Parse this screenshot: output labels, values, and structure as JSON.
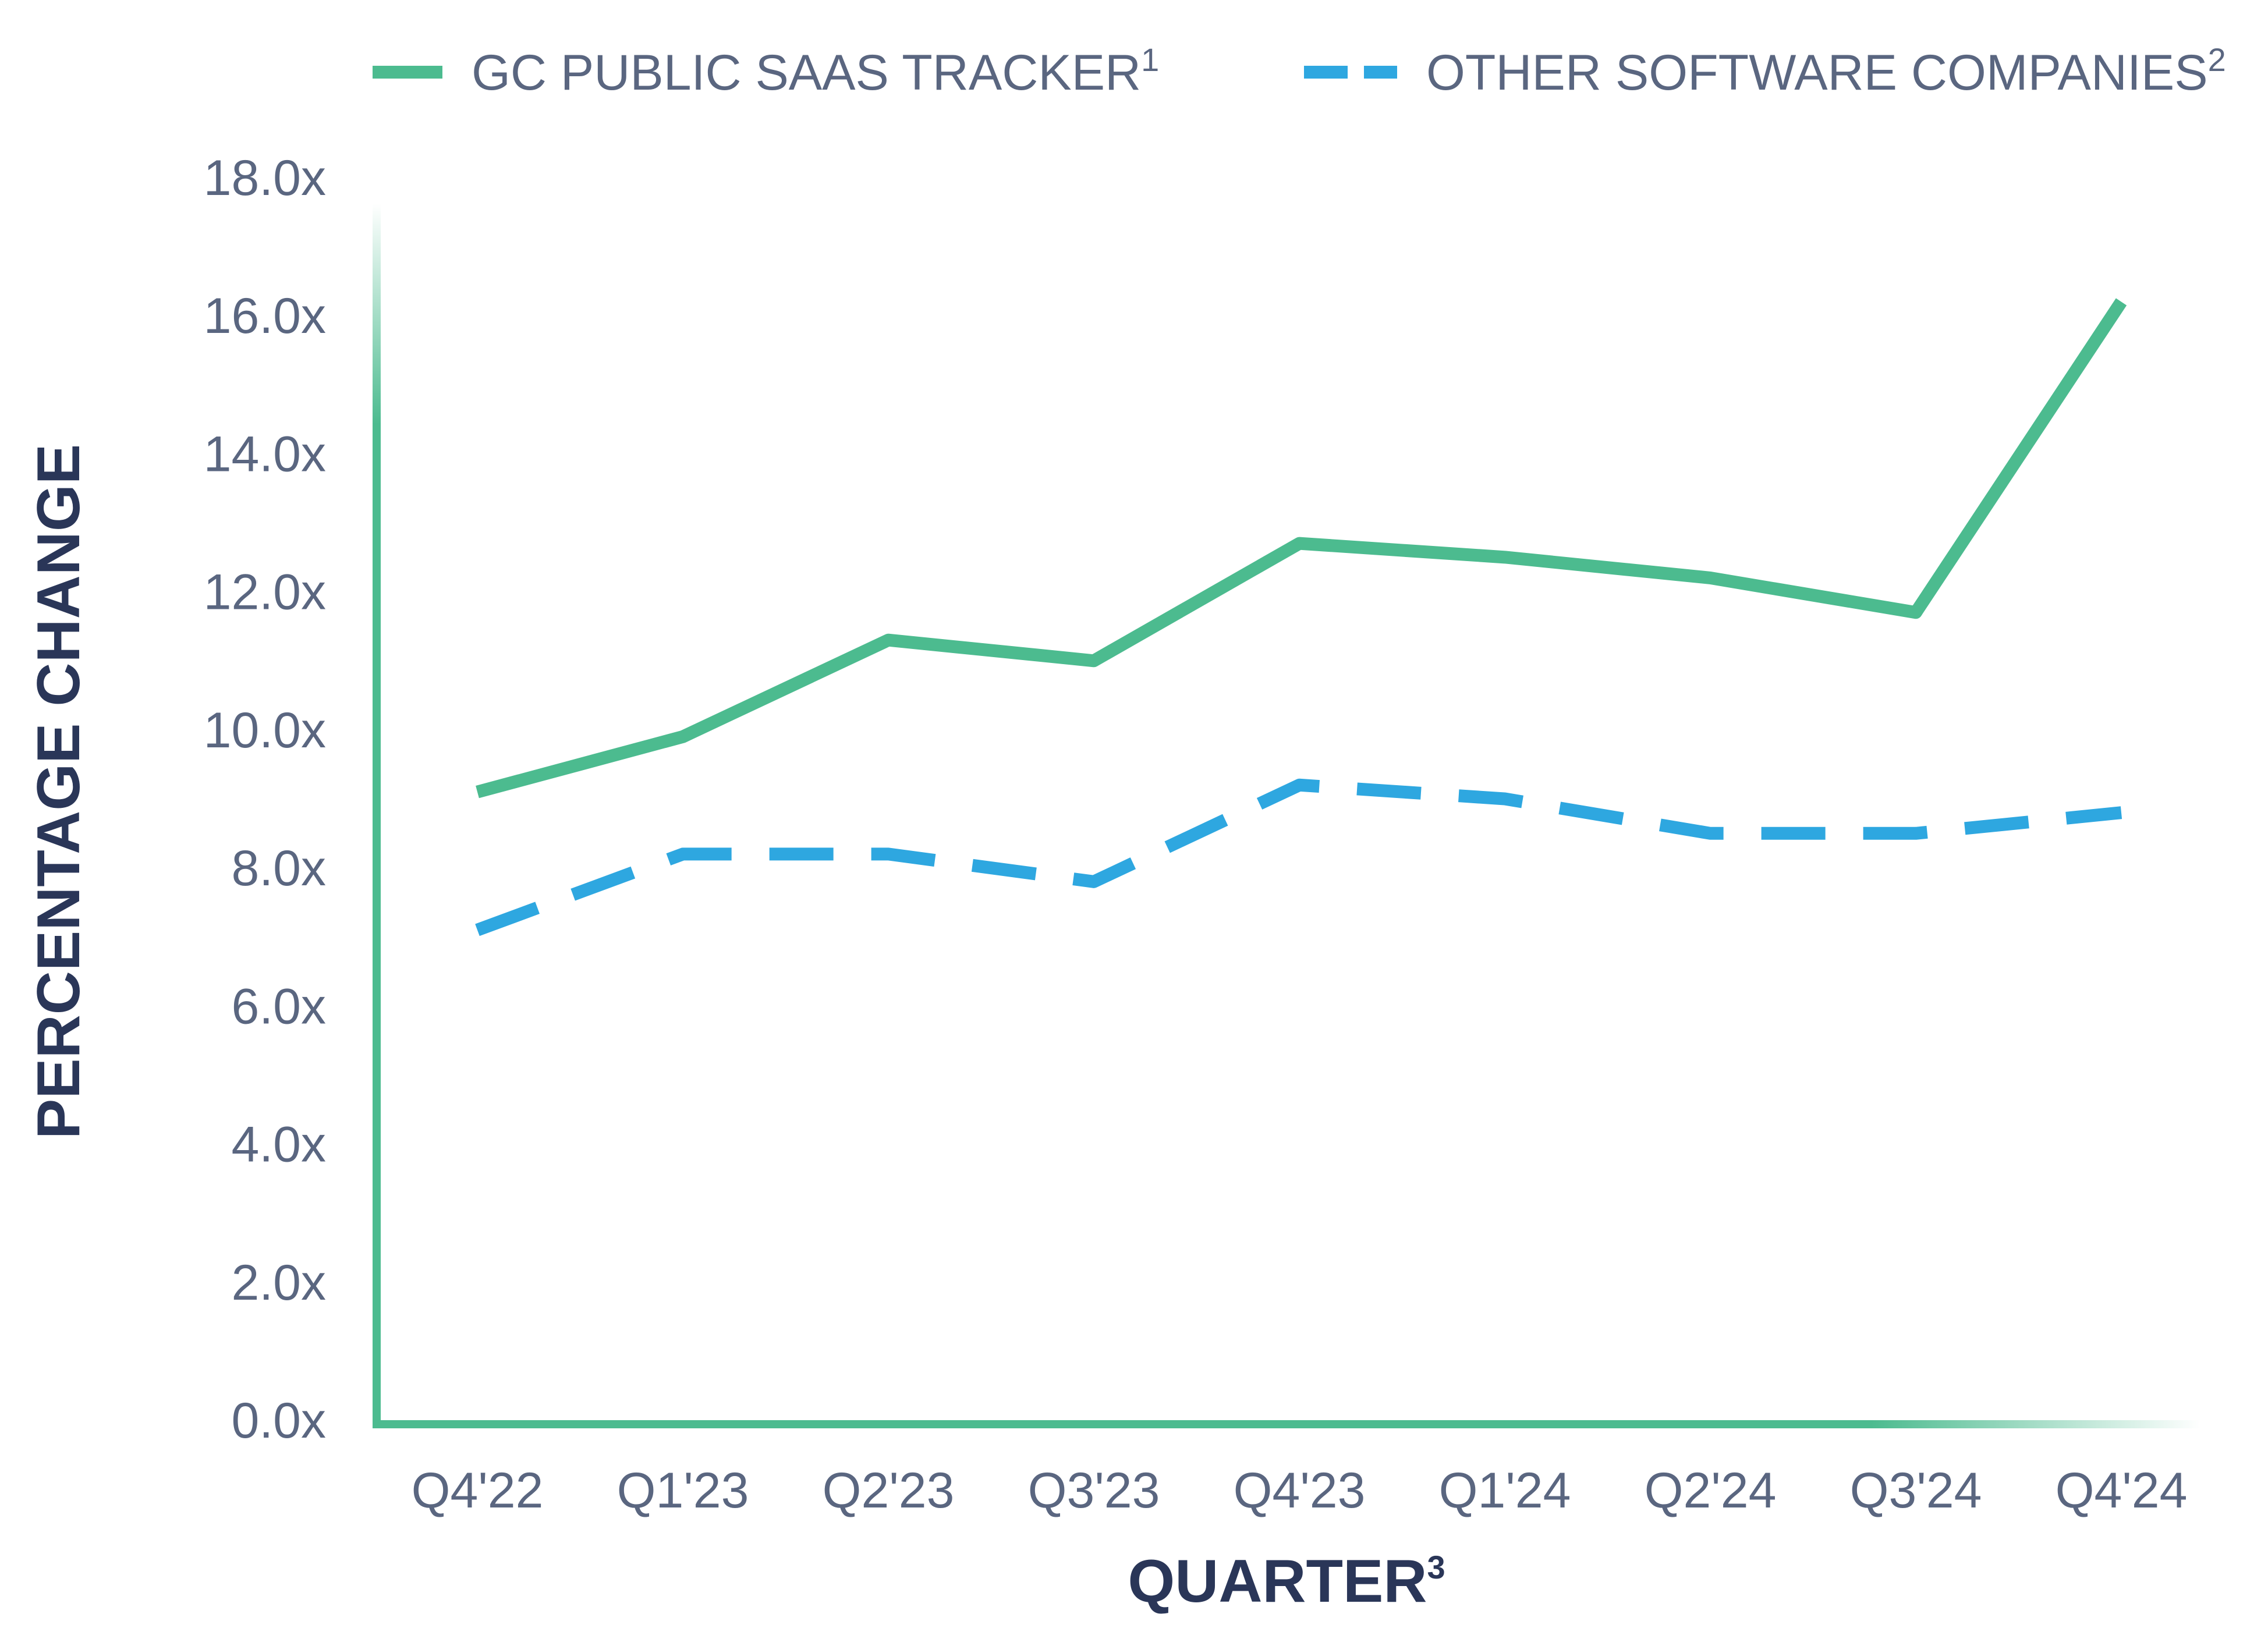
{
  "chart_data": {
    "type": "line",
    "categories": [
      "Q4'22",
      "Q1'23",
      "Q2'23",
      "Q3'23",
      "Q4'23",
      "Q1'24",
      "Q2'24",
      "Q3'24",
      "Q4'24"
    ],
    "series": [
      {
        "name": "GC PUBLIC SAAS TRACKER",
        "name_superscript": "1",
        "color": "#4cbb8f",
        "style": "solid",
        "values": [
          9.1,
          9.9,
          11.3,
          11.0,
          12.7,
          12.5,
          12.2,
          11.7,
          16.2
        ]
      },
      {
        "name": "OTHER SOFTWARE COMPANIES",
        "name_superscript": "2",
        "color": "#2ea7e0",
        "style": "dashed",
        "values": [
          7.1,
          8.2,
          8.2,
          7.8,
          9.2,
          9.0,
          8.5,
          8.5,
          8.8
        ]
      }
    ],
    "xlabel": "QUARTER",
    "xlabel_superscript": "3",
    "ylabel": "PERCENTAGE CHANGE",
    "ylim": [
      0,
      18
    ],
    "yticks": [
      "0.0x",
      "2.0x",
      "4.0x",
      "6.0x",
      "8.0x",
      "10.0x",
      "12.0x",
      "14.0x",
      "16.0x",
      "18.0x"
    ],
    "grid": false,
    "legend_position": "top",
    "axis_color": "#4cbb8f"
  }
}
